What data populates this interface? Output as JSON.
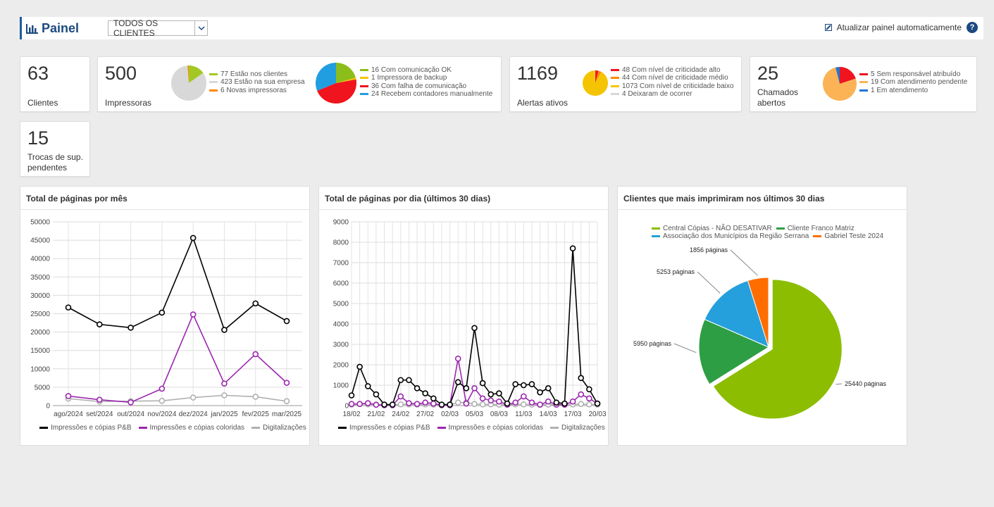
{
  "header": {
    "title": "Painel",
    "client_filter": "TODOS OS CLIENTES",
    "auto_refresh_label": "Atualizar painel automaticamente",
    "help_label": "?"
  },
  "kpis": {
    "clientes": {
      "value": "63",
      "label": "Clientes"
    },
    "impressoras": {
      "value": "500",
      "label": "Impressoras",
      "pie1": [
        {
          "text": "77 Estão nos clientes",
          "value": 77,
          "color": "#a3c823"
        },
        {
          "text": "423 Estão na sua empresa",
          "value": 423,
          "color": "#d8d8d8"
        },
        {
          "text": "6 Novas impressoras",
          "value": 6,
          "color": "#ff8a00"
        }
      ],
      "pie2": [
        {
          "text": "16 Com comunicação OK",
          "value": 16,
          "color": "#8cbd1a"
        },
        {
          "text": "1 Impressora de backup",
          "value": 1,
          "color": "#f5c400"
        },
        {
          "text": "36 Com falha de comunicação",
          "value": 36,
          "color": "#f0141e"
        },
        {
          "text": "24 Recebem contadores manualmente",
          "value": 24,
          "color": "#219ee0"
        }
      ]
    },
    "alertas": {
      "value": "1169",
      "label": "Alertas ativos",
      "pie": [
        {
          "text": "48 Com nível de criticidade alto",
          "value": 48,
          "color": "#f0141e"
        },
        {
          "text": "44 Com nível de criticidade médio",
          "value": 44,
          "color": "#ff8a00"
        },
        {
          "text": "1073 Com nível de criticidade baixo",
          "value": 1073,
          "color": "#f5c400"
        },
        {
          "text": "4 Deixaram de ocorrer",
          "value": 4,
          "color": "#d8d8d8"
        }
      ]
    },
    "chamados": {
      "value": "25",
      "label_line1": "Chamados",
      "label_line2": "abertos",
      "pie": [
        {
          "text": "5 Sem responsável atribuído",
          "value": 5,
          "color": "#f0141e"
        },
        {
          "text": "19 Com atendimento pendente",
          "value": 19,
          "color": "#fbb356"
        },
        {
          "text": "1 Em atendimento",
          "value": 1,
          "color": "#1f77d0"
        }
      ]
    },
    "trocas": {
      "value": "15",
      "label_line1": "Trocas de sup.",
      "label_line2": "pendentes"
    }
  },
  "panels": {
    "monthly": {
      "title": "Total de páginas por mês"
    },
    "daily": {
      "title": "Total de páginas por dia (últimos 30 dias)"
    },
    "clients": {
      "title": "Clientes que mais imprimiram nos últimos 30 dias"
    }
  },
  "chart_data": [
    {
      "type": "line",
      "title": "Total de páginas por mês",
      "categories": [
        "ago/2024",
        "set/2024",
        "out/2024",
        "nov/2024",
        "dez/2024",
        "jan/2025",
        "fev/2025",
        "mar/2025"
      ],
      "ylim": [
        0,
        50000
      ],
      "yticks": [
        "0",
        "5000",
        "10000",
        "15000",
        "20000",
        "25000",
        "30000",
        "35000",
        "40000",
        "45000",
        "50000"
      ],
      "series": [
        {
          "name": "Impressões e cópias P&B",
          "color": "#000000",
          "values": [
            26700,
            22100,
            21200,
            25300,
            45600,
            20600,
            27800,
            23000
          ]
        },
        {
          "name": "Impressões e cópias coloridas",
          "color": "#9c27b0",
          "values": [
            2600,
            1600,
            900,
            4600,
            24800,
            6000,
            14000,
            6200
          ]
        },
        {
          "name": "Digitalizações",
          "color": "#b0b0b0",
          "values": [
            1900,
            1100,
            1200,
            1300,
            2200,
            2800,
            2400,
            1200
          ]
        }
      ]
    },
    {
      "type": "line",
      "title": "Total de páginas por dia (últimos 30 dias)",
      "categories": [
        "18/02",
        "19/02",
        "20/02",
        "21/02",
        "22/02",
        "23/02",
        "24/02",
        "25/02",
        "26/02",
        "27/02",
        "28/02",
        "01/03",
        "02/03",
        "03/03",
        "04/03",
        "05/03",
        "06/03",
        "07/03",
        "08/03",
        "09/03",
        "10/03",
        "11/03",
        "12/03",
        "13/03",
        "14/03",
        "15/03",
        "16/03",
        "17/03",
        "18/03",
        "19/03",
        "20/03"
      ],
      "tick_labels": [
        "18/02",
        "21/02",
        "24/02",
        "27/02",
        "02/03",
        "05/03",
        "08/03",
        "11/03",
        "14/03",
        "17/03",
        "20/03"
      ],
      "ylim": [
        0,
        9000
      ],
      "yticks": [
        "0",
        "1000",
        "2000",
        "3000",
        "4000",
        "5000",
        "6000",
        "7000",
        "8000",
        "9000"
      ],
      "series": [
        {
          "name": "Impressões e cópias P&B",
          "color": "#000000",
          "values": [
            500,
            1900,
            950,
            550,
            50,
            50,
            1250,
            1250,
            850,
            600,
            350,
            50,
            50,
            1150,
            850,
            3800,
            1100,
            550,
            600,
            100,
            1050,
            1000,
            1050,
            650,
            850,
            150,
            100,
            7700,
            1350,
            800,
            100
          ]
        },
        {
          "name": "Impressões e cópias coloridas",
          "color": "#9c27b0",
          "values": [
            80,
            80,
            120,
            40,
            20,
            20,
            450,
            120,
            80,
            150,
            100,
            20,
            20,
            2300,
            100,
            850,
            350,
            250,
            200,
            50,
            150,
            450,
            150,
            50,
            200,
            50,
            50,
            200,
            550,
            350,
            100
          ]
        },
        {
          "name": "Digitalizações",
          "color": "#b0b0b0",
          "values": [
            50,
            80,
            60,
            50,
            40,
            40,
            60,
            60,
            50,
            60,
            50,
            40,
            40,
            150,
            150,
            80,
            60,
            60,
            50,
            40,
            60,
            60,
            50,
            40,
            50,
            40,
            40,
            60,
            80,
            60,
            50
          ]
        }
      ]
    },
    {
      "type": "pie",
      "title": "Clientes que mais imprimiram nos últimos 30 dias",
      "series": [
        {
          "name": "Central Cópias - NÃO DESATIVAR",
          "value": 25440,
          "label": "25440 páginas",
          "color": "#8cbd00"
        },
        {
          "name": "Cliente Franco Matriz",
          "value": 5950,
          "label": "5950 páginas",
          "color": "#2e9e44"
        },
        {
          "name": "Associação dos Municípios da Região Serrana",
          "value": 5253,
          "label": "5253 páginas",
          "color": "#26a0dc"
        },
        {
          "name": "Gabriel Teste 2024",
          "value": 1856,
          "label": "1856 páginas",
          "color": "#ff6d00"
        }
      ]
    }
  ]
}
